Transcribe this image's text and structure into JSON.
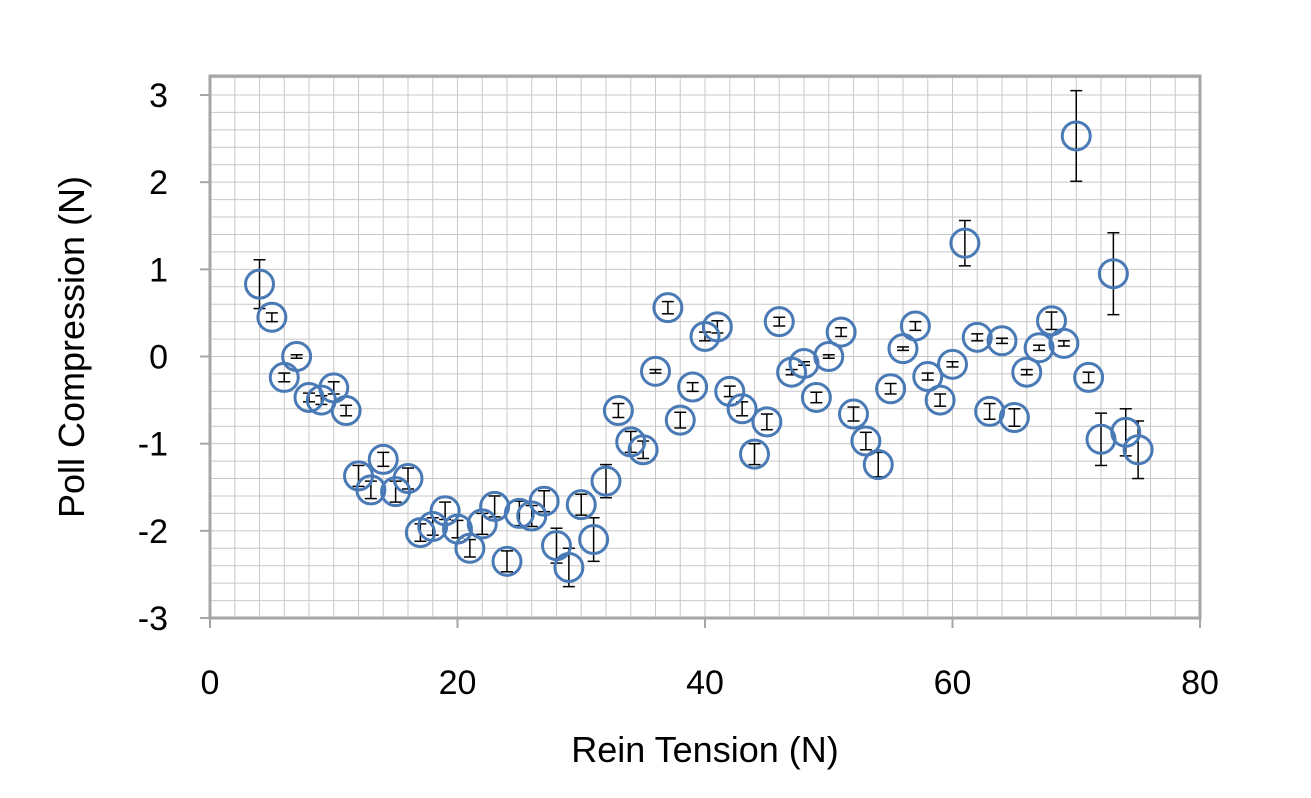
{
  "chart_data": {
    "type": "scatter",
    "xlabel": "Rein Tension (N)",
    "ylabel": "Poll Compression (N)",
    "xlim": [
      0,
      80
    ],
    "ylim": [
      -3,
      3.2
    ],
    "x_ticks": [
      "0",
      "20",
      "40",
      "60",
      "80"
    ],
    "y_ticks": [
      "3",
      "2",
      "1",
      "0",
      "-1",
      "-2",
      "-3"
    ],
    "grid": "on",
    "legend": "none",
    "marker": "open-circle",
    "colors": {
      "marker": "#4a7ab5",
      "error_bar": "#000000",
      "grid": "#c8c8c8",
      "frame": "#a6a6a6"
    },
    "points": [
      {
        "x": 4,
        "y": 0.83,
        "err": 0.28
      },
      {
        "x": 5,
        "y": 0.45,
        "err": 0.05
      },
      {
        "x": 6,
        "y": -0.24,
        "err": 0.05
      },
      {
        "x": 7,
        "y": 0.0,
        "err": 0.02
      },
      {
        "x": 8,
        "y": -0.47,
        "err": 0.05
      },
      {
        "x": 9,
        "y": -0.5,
        "err": 0.05
      },
      {
        "x": 10,
        "y": -0.36,
        "err": 0.07
      },
      {
        "x": 11,
        "y": -0.62,
        "err": 0.06
      },
      {
        "x": 12,
        "y": -1.37,
        "err": 0.12
      },
      {
        "x": 13,
        "y": -1.53,
        "err": 0.1
      },
      {
        "x": 14,
        "y": -1.18,
        "err": 0.08
      },
      {
        "x": 15,
        "y": -1.55,
        "err": 0.12
      },
      {
        "x": 16,
        "y": -1.4,
        "err": 0.12
      },
      {
        "x": 17,
        "y": -2.02,
        "err": 0.1
      },
      {
        "x": 18,
        "y": -1.95,
        "err": 0.1
      },
      {
        "x": 19,
        "y": -1.77,
        "err": 0.1
      },
      {
        "x": 20,
        "y": -1.98,
        "err": 0.1
      },
      {
        "x": 21,
        "y": -2.2,
        "err": 0.1
      },
      {
        "x": 22,
        "y": -1.92,
        "err": 0.12
      },
      {
        "x": 23,
        "y": -1.72,
        "err": 0.12
      },
      {
        "x": 24,
        "y": -2.35,
        "err": 0.12
      },
      {
        "x": 25,
        "y": -1.8,
        "err": 0.14
      },
      {
        "x": 26,
        "y": -1.83,
        "err": 0.12
      },
      {
        "x": 27,
        "y": -1.66,
        "err": 0.12
      },
      {
        "x": 28,
        "y": -2.17,
        "err": 0.2
      },
      {
        "x": 29,
        "y": -2.42,
        "err": 0.22
      },
      {
        "x": 30,
        "y": -1.7,
        "err": 0.12
      },
      {
        "x": 31,
        "y": -2.1,
        "err": 0.25
      },
      {
        "x": 32,
        "y": -1.43,
        "err": 0.19
      },
      {
        "x": 33,
        "y": -0.62,
        "err": 0.08
      },
      {
        "x": 34,
        "y": -0.98,
        "err": 0.12
      },
      {
        "x": 35,
        "y": -1.07,
        "err": 0.1
      },
      {
        "x": 36,
        "y": -0.17,
        "err": 0.02
      },
      {
        "x": 37,
        "y": 0.56,
        "err": 0.07
      },
      {
        "x": 38,
        "y": -0.73,
        "err": 0.09
      },
      {
        "x": 39,
        "y": -0.35,
        "err": 0.05
      },
      {
        "x": 40,
        "y": 0.23,
        "err": 0.05
      },
      {
        "x": 41,
        "y": 0.34,
        "err": 0.07
      },
      {
        "x": 42,
        "y": -0.4,
        "err": 0.06
      },
      {
        "x": 43,
        "y": -0.6,
        "err": 0.08
      },
      {
        "x": 44,
        "y": -1.12,
        "err": 0.12
      },
      {
        "x": 45,
        "y": -0.75,
        "err": 0.09
      },
      {
        "x": 46,
        "y": 0.4,
        "err": 0.05
      },
      {
        "x": 47,
        "y": -0.18,
        "err": 0.03
      },
      {
        "x": 48,
        "y": -0.08,
        "err": 0.02
      },
      {
        "x": 49,
        "y": -0.47,
        "err": 0.06
      },
      {
        "x": 50,
        "y": 0.0,
        "err": 0.02
      },
      {
        "x": 51,
        "y": 0.28,
        "err": 0.05
      },
      {
        "x": 52,
        "y": -0.66,
        "err": 0.08
      },
      {
        "x": 53,
        "y": -0.97,
        "err": 0.1
      },
      {
        "x": 54,
        "y": -1.24,
        "err": 0.14
      },
      {
        "x": 55,
        "y": -0.37,
        "err": 0.06
      },
      {
        "x": 56,
        "y": 0.09,
        "err": 0.02
      },
      {
        "x": 57,
        "y": 0.35,
        "err": 0.05
      },
      {
        "x": 58,
        "y": -0.23,
        "err": 0.04
      },
      {
        "x": 59,
        "y": -0.5,
        "err": 0.07
      },
      {
        "x": 60,
        "y": -0.09,
        "err": 0.03
      },
      {
        "x": 61,
        "y": 1.3,
        "err": 0.26
      },
      {
        "x": 62,
        "y": 0.22,
        "err": 0.04
      },
      {
        "x": 63,
        "y": -0.63,
        "err": 0.09
      },
      {
        "x": 64,
        "y": 0.18,
        "err": 0.03
      },
      {
        "x": 65,
        "y": -0.7,
        "err": 0.1
      },
      {
        "x": 66,
        "y": -0.18,
        "err": 0.03
      },
      {
        "x": 67,
        "y": 0.1,
        "err": 0.03
      },
      {
        "x": 68,
        "y": 0.41,
        "err": 0.1
      },
      {
        "x": 69,
        "y": 0.15,
        "err": 0.03
      },
      {
        "x": 70,
        "y": 2.53,
        "err": 0.52
      },
      {
        "x": 71,
        "y": -0.24,
        "err": 0.06
      },
      {
        "x": 72,
        "y": -0.95,
        "err": 0.3
      },
      {
        "x": 73,
        "y": 0.95,
        "err": 0.47
      },
      {
        "x": 74,
        "y": -0.87,
        "err": 0.27
      },
      {
        "x": 75,
        "y": -1.07,
        "err": 0.33
      }
    ]
  }
}
